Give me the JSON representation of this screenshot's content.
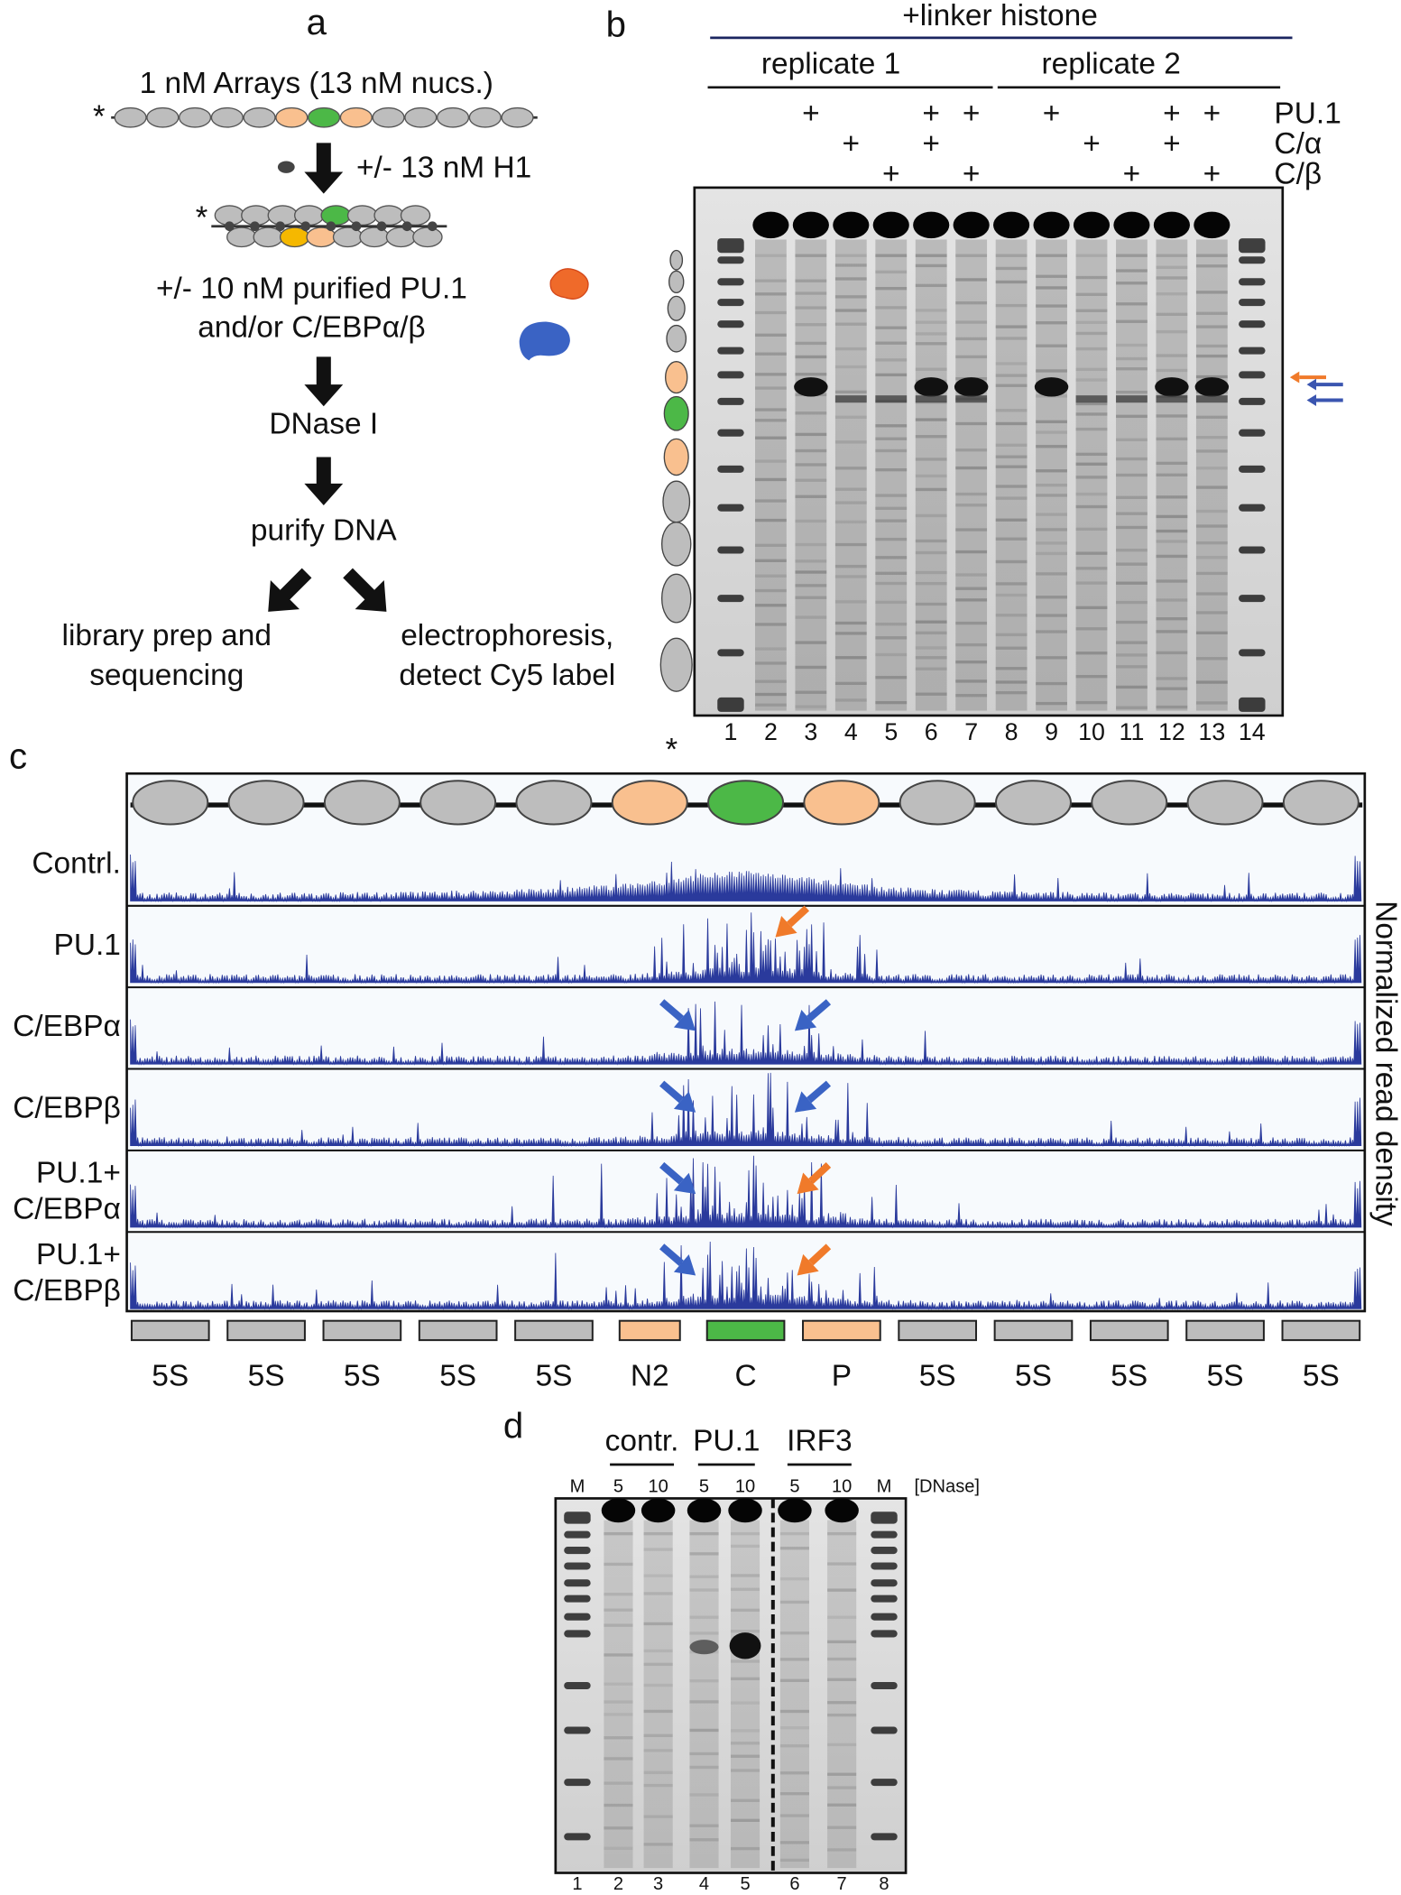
{
  "panel_a": {
    "label": "a",
    "title": "1 nM Arrays (13 nM nucs.)",
    "steps": [
      "+/- 13 nM H1",
      "+/- 10 nM purified PU.1",
      "and/or C/EBPα/β",
      "DNase I",
      "purify DNA"
    ],
    "outputs": [
      [
        "library prep and",
        "sequencing"
      ],
      [
        "electrophoresis,",
        "detect Cy5 label"
      ]
    ]
  },
  "panel_b": {
    "label": "b",
    "header": "+linker histone",
    "replicates": [
      "replicate 1",
      "replicate 2"
    ],
    "conditions": [
      {
        "label": "PU.1",
        "mark": "+",
        "lanes": [
          3,
          6,
          7,
          9,
          12,
          13
        ]
      },
      {
        "label": "C/α",
        "mark": "+",
        "lanes": [
          4,
          6,
          10,
          12
        ]
      },
      {
        "label": "C/β",
        "mark": "+",
        "lanes": [
          5,
          7,
          11,
          13
        ]
      }
    ],
    "lanes": [
      1,
      2,
      3,
      4,
      5,
      6,
      7,
      8,
      9,
      10,
      11,
      12,
      13,
      14
    ]
  },
  "panel_c": {
    "label": "c",
    "y_label": "Normalized read density",
    "tracks": [
      [
        "Contrl."
      ],
      [
        "PU.1"
      ],
      [
        "C/EBPα"
      ],
      [
        "C/EBPβ"
      ],
      [
        "PU.1+",
        "C/EBPα"
      ],
      [
        "PU.1+",
        "C/EBPβ"
      ]
    ],
    "segments": [
      "5S",
      "5S",
      "5S",
      "5S",
      "5S",
      "N2",
      "C",
      "P",
      "5S",
      "5S",
      "5S",
      "5S",
      "5S"
    ]
  },
  "panel_d": {
    "label": "d",
    "groups": [
      "contr.",
      "PU.1",
      "IRF3"
    ],
    "lane_headers": [
      "M",
      "5",
      "10",
      "5",
      "10",
      "5",
      "10",
      "M"
    ],
    "unit": "[DNase]",
    "lanes": [
      1,
      2,
      3,
      4,
      5,
      6,
      7,
      8
    ]
  }
}
